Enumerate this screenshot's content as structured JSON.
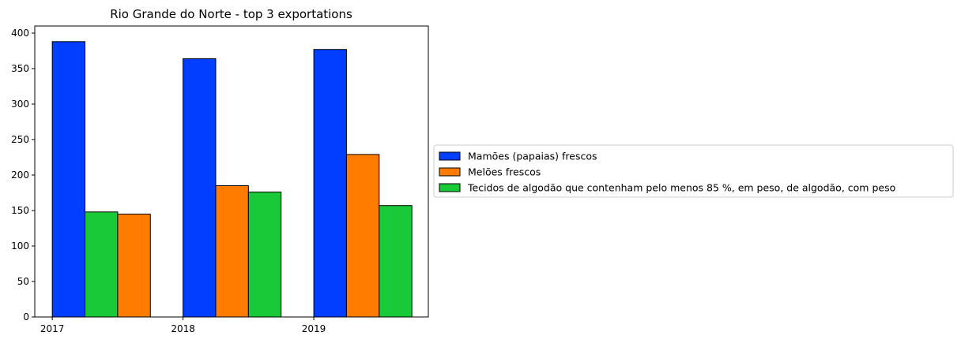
{
  "chart_data": {
    "type": "bar",
    "title": "Rio Grande do Norte - top 3 exportations",
    "xlabel": "",
    "ylabel": "",
    "categories": [
      "2017",
      "2018",
      "2019"
    ],
    "ylim": [
      0,
      410
    ],
    "yticks": [
      0,
      50,
      100,
      150,
      200,
      250,
      300,
      350,
      400
    ],
    "grid": false,
    "legend_position": "center-left outside (right of plot)",
    "series": [
      {
        "name": "Mamões (papaias) frescos",
        "color": "#023eff",
        "values": [
          388,
          364,
          377
        ]
      },
      {
        "name": "Melões frescos",
        "color": "#ff7c00",
        "values": [
          145,
          185,
          229
        ]
      },
      {
        "name": "Tecidos de algodão que contenham pelo menos 85 %, em peso, de algodão, com peso",
        "color": "#1ac938",
        "values": [
          148,
          176,
          157
        ]
      }
    ],
    "bar_order": [
      [
        0,
        2,
        1
      ],
      [
        0,
        1,
        2
      ],
      [
        0,
        1,
        2
      ]
    ]
  }
}
